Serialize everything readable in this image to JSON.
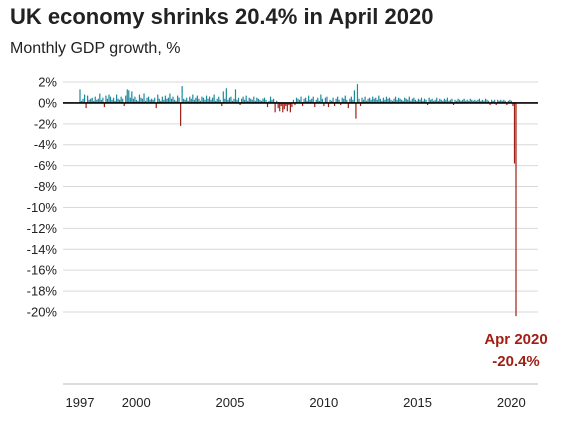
{
  "chart_data": {
    "type": "bar",
    "title": "UK economy shrinks 20.4% in April 2020",
    "subtitle": "Monthly GDP growth, %",
    "xlabel": "",
    "ylabel": "",
    "ylim": [
      -20,
      2
    ],
    "yticks": [
      "2%",
      "0%",
      "-2%",
      "-4%",
      "-6%",
      "-8%",
      "-10%",
      "-12%",
      "-14%",
      "-16%",
      "-18%",
      "-20%"
    ],
    "ytick_values": [
      2,
      0,
      -2,
      -4,
      -6,
      -8,
      -10,
      -12,
      -14,
      -16,
      -18,
      -20
    ],
    "xticks": [
      "1997",
      "2000",
      "2005",
      "2010",
      "2015",
      "2020"
    ],
    "xtick_values": [
      1997,
      2000,
      2005,
      2010,
      2015,
      2020
    ],
    "x_start": "1997-01",
    "x_end": "2020-04",
    "grid": true,
    "colors": {
      "positive": "#1a8a9e",
      "negative": "#a01f14",
      "zero_line": "#000000",
      "grid": "#d9d9d9"
    },
    "series": [
      {
        "values": [
          1.3,
          0.2,
          0.4,
          0.8,
          -0.5,
          0.7,
          0.3,
          0.4,
          0.5,
          0.2,
          0.6,
          0.3,
          0.4,
          0.9,
          0.3,
          0.5,
          -0.4,
          0.7,
          0.4,
          0.8,
          0.6,
          0.3,
          0.5,
          0.2,
          0.8,
          0.4,
          0.3,
          0.6,
          0.4,
          -0.3,
          0.7,
          1.3,
          1.2,
          0.5,
          1.1,
          0.4,
          0.6,
          0.3,
          0.2,
          0.8,
          0.5,
          0.4,
          0.9,
          0.2,
          0.5,
          0.6,
          0.3,
          0.4,
          0.3,
          0.5,
          -0.5,
          0.8,
          0.4,
          0.2,
          0.6,
          0.3,
          0.7,
          0.4,
          0.5,
          0.9,
          0.4,
          0.6,
          0.3,
          0.2,
          0.7,
          0.5,
          -2.2,
          1.6,
          0.4,
          0.3,
          0.5,
          0.2,
          0.6,
          0.4,
          0.8,
          0.3,
          0.5,
          0.7,
          0.4,
          0.2,
          0.6,
          0.5,
          0.3,
          0.7,
          0.4,
          0.6,
          0.3,
          0.5,
          0.8,
          0.2,
          0.4,
          0.6,
          0.3,
          -0.3,
          1.1,
          0.4,
          1.4,
          0.3,
          0.5,
          0.6,
          0.2,
          0.4,
          1.3,
          0.3,
          0.5,
          -0.2,
          0.4,
          0.6,
          0.3,
          0.7,
          0.2,
          0.5,
          0.4,
          0.3,
          0.6,
          0.2,
          0.5,
          0.4,
          0.3,
          0.2,
          0.4,
          0.5,
          0.3,
          -0.4,
          0.2,
          0.6,
          0.3,
          0.4,
          -0.9,
          0.2,
          -0.5,
          -0.8,
          -0.3,
          -0.9,
          -0.6,
          -0.3,
          -0.8,
          -0.2,
          -0.9,
          -0.4,
          0.3,
          -0.2,
          0.5,
          0.4,
          0.3,
          0.6,
          -0.3,
          0.4,
          0.5,
          0.2,
          0.7,
          0.3,
          0.4,
          0.6,
          -0.4,
          0.3,
          0.5,
          0.2,
          0.8,
          0.4,
          -0.3,
          0.5,
          0.6,
          -0.4,
          0.3,
          0.2,
          0.5,
          -0.3,
          0.4,
          0.6,
          0.3,
          -0.2,
          0.5,
          0.4,
          0.7,
          0.3,
          -0.5,
          0.4,
          0.6,
          0.3,
          1.2,
          -1.5,
          1.8,
          0.4,
          -0.3,
          0.5,
          0.3,
          0.6,
          0.2,
          0.4,
          0.5,
          0.3,
          0.6,
          0.4,
          0.5,
          0.3,
          0.7,
          0.4,
          0.2,
          0.5,
          0.3,
          0.6,
          0.4,
          0.5,
          0.3,
          0.2,
          0.4,
          0.6,
          0.3,
          0.5,
          0.4,
          0.3,
          0.2,
          0.5,
          0.4,
          0.3,
          0.6,
          0.2,
          0.4,
          0.5,
          0.3,
          0.2,
          0.4,
          0.3,
          0.5,
          0.2,
          0.4,
          0.3,
          -0.2,
          0.5,
          0.3,
          0.4,
          0.2,
          0.3,
          0.5,
          0.2,
          0.4,
          0.3,
          0.2,
          0.4,
          0.3,
          0.5,
          0.2,
          0.3,
          0.4,
          -0.2,
          0.3,
          0.2,
          0.4,
          0.3,
          0.2,
          0.3,
          0.4,
          0.2,
          0.3,
          0.2,
          0.4,
          0.3,
          0.2,
          0.3,
          0.2,
          0.3,
          0.4,
          0.2,
          0.3,
          0.2,
          0.4,
          0.3,
          0.2,
          -0.2,
          0.3,
          0.2,
          0.3,
          -0.2,
          0.3,
          0.2,
          0.3,
          0.2,
          0.3,
          0.2,
          -0.2,
          0.2,
          0.3,
          0.2,
          -0.3,
          -5.8,
          -20.4
        ]
      }
    ],
    "annotation": {
      "label": "Apr 2020",
      "value_label": "-20.4%",
      "x": "2020-04",
      "y": -20.4
    }
  }
}
